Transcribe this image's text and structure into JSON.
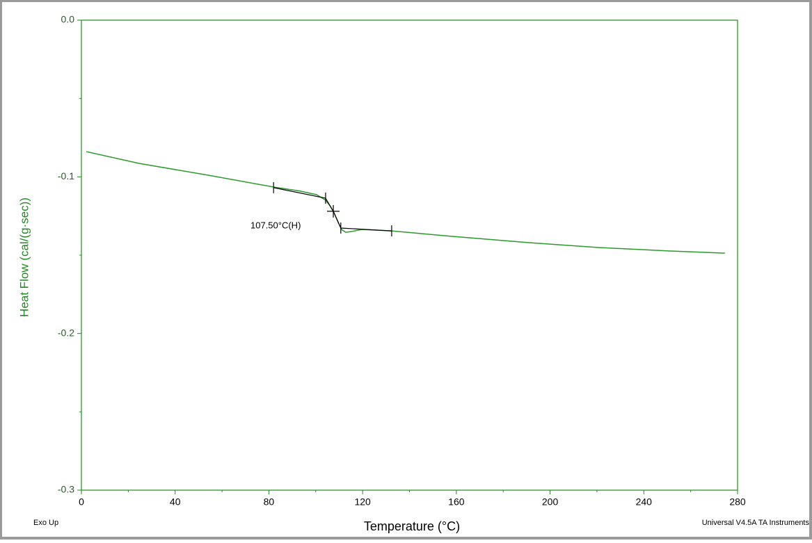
{
  "chart_data": {
    "type": "line",
    "xlabel": "Temperature (°C)",
    "ylabel": "Heat Flow (cal/(g·sec))",
    "xlim": [
      0,
      280
    ],
    "ylim": [
      -0.3,
      0
    ],
    "xticks": [
      0,
      40,
      80,
      120,
      160,
      200,
      240,
      280
    ],
    "xminorticks": [
      20,
      60,
      100,
      140,
      180,
      220,
      260
    ],
    "yticks": [
      {
        "value": 0,
        "label": "0.0"
      },
      -0.1,
      -0.2,
      -0.3
    ],
    "yminorticks": [
      -0.05,
      -0.15,
      -0.25
    ],
    "axis_color": "#1f8a1f",
    "series": [
      {
        "color": "#2a9a2a",
        "x": [
          2.1,
          24.6,
          54.3,
          82.0,
          93.0,
          100.4,
          104.2,
          106.3,
          107.8,
          109.6,
          111.0,
          112.8,
          115.2,
          119.7,
          132.4,
          158.3,
          191.0,
          220.6,
          250.3,
          274.6
        ],
        "values": [
          -0.0839,
          -0.0914,
          -0.099,
          -0.1065,
          -0.109,
          -0.1114,
          -0.1149,
          -0.119,
          -0.123,
          -0.129,
          -0.1336,
          -0.1354,
          -0.1349,
          -0.1336,
          -0.1345,
          -0.138,
          -0.142,
          -0.1451,
          -0.1473,
          -0.1487
        ]
      }
    ],
    "analysis": {
      "color": "#000000",
      "x": [
        82.0,
        104.2,
        107.5,
        110.7,
        132.4
      ],
      "values": [
        -0.1069,
        -0.1136,
        -0.122,
        -0.1327,
        -0.1345
      ]
    },
    "annotations": [
      {
        "text": "107.50°C(H)"
      }
    ],
    "footer_left": "Exo Up",
    "footer_right": "Universal V4.5A TA Instruments"
  }
}
